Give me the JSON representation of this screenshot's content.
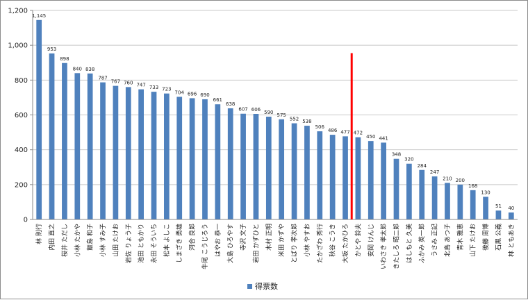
{
  "chart_data": {
    "type": "bar",
    "title": "",
    "xlabel": "",
    "ylabel": "",
    "ylim": [
      0,
      1200
    ],
    "yticks": [
      0,
      200,
      400,
      600,
      800,
      1000,
      1200
    ],
    "ytick_labels": [
      "0",
      "200",
      "400",
      "600",
      "800",
      "1,000",
      "1,200"
    ],
    "grid": true,
    "legend_position": "bottom",
    "categories": [
      "林 則行",
      "内田 直之",
      "桜井 ただし",
      "小林 たかや",
      "飯島 和子",
      "小林 すみ子",
      "山田 たけお",
      "岩佐 りょう子",
      "池田 ともかり",
      "永田 そういち",
      "松本 よしこ",
      "しまざき 勇雄",
      "河合 良郎",
      "牛尾 こうじろう",
      "はやお 恭一",
      "大島 ひろやす",
      "寺沢 文子",
      "岩田 かずひと",
      "木村 正明",
      "米田 かずや",
      "とばり 孝次郎",
      "小林 やすお",
      "たかざわ 秀行",
      "秋谷 こうき",
      "大坂 たかひろ",
      "かとや 鈴夫",
      "安岡 けんじ",
      "いわさき 孝太郎",
      "きたしろ 昭二郎",
      "はしもと 久美",
      "ふかみ 英一郎",
      "うさみ 正記",
      "北島 あつ子",
      "青木 雅恵",
      "山下 たけお",
      "後藤 周博",
      "石黒 公義",
      "林 ともあき"
    ],
    "series": [
      {
        "name": "得票数",
        "color": "#4f81bd",
        "values": [
          1145,
          953,
          898,
          840,
          838,
          787,
          767,
          760,
          747,
          733,
          723,
          704,
          696,
          690,
          661,
          638,
          607,
          606,
          590,
          575,
          552,
          538,
          506,
          486,
          477,
          472,
          450,
          441,
          348,
          320,
          284,
          247,
          210,
          200,
          168,
          130,
          51,
          40
        ],
        "data_labels": [
          "1,145",
          "953",
          "898",
          "840",
          "838",
          "787",
          "767",
          "760",
          "747",
          "733",
          "723",
          "704",
          "696",
          "690",
          "661",
          "638",
          "607",
          "606",
          "590",
          "575",
          "552",
          "538",
          "506",
          "486",
          "477",
          "472",
          "450",
          "441",
          "348",
          "320",
          "284",
          "247",
          "210",
          "200",
          "168",
          "130",
          "51",
          "40"
        ]
      }
    ],
    "annotation": {
      "type": "vertical-line",
      "between_categories": [
        24,
        25
      ],
      "y_value": 955,
      "color": "#ff0000"
    }
  }
}
